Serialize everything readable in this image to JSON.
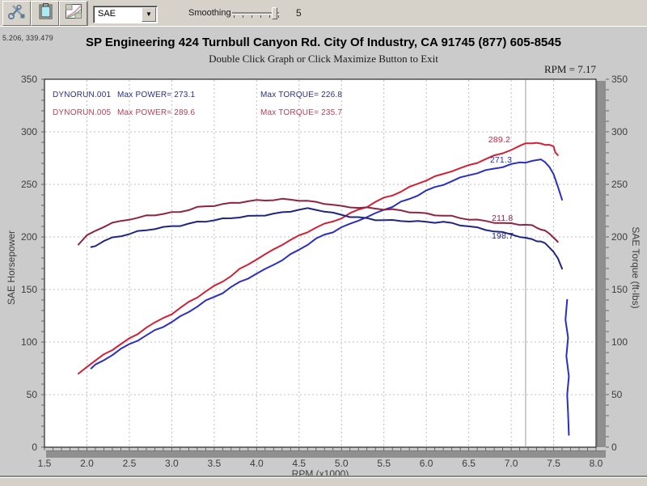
{
  "toolbar": {
    "buttons": [
      {
        "name": "tools"
      },
      {
        "name": "clipboard"
      },
      {
        "name": "graph-overlay"
      }
    ],
    "correction_dropdown": {
      "value": "SAE"
    },
    "smoothing": {
      "label": "Smoothing",
      "value": "5"
    }
  },
  "readouts": {
    "cursor_coords": "5.206, 339.479",
    "rpm": "RPM = 7.17"
  },
  "header": {
    "title": "SP Engineering 424 Turnbull Canyon Rd. City Of Industry, CA 91745 (877) 605-8545",
    "subtitle": "Double Click Graph or Click Maximize Button to Exit"
  },
  "legend": {
    "rows": [
      {
        "run": "DYNORUN.001",
        "power": "Max POWER= 273.1",
        "torque": "Max TORQUE= 226.8",
        "color": "#293089"
      },
      {
        "run": "DYNORUN.005",
        "power": "Max POWER= 289.6",
        "torque": "Max TORQUE= 235.7",
        "color": "#b34157"
      }
    ]
  },
  "chart_data": {
    "type": "line",
    "title": "SP Engineering 424 Turnbull Canyon Rd. City Of Industry, CA 91745 (877) 605-8545",
    "xlabel": "RPM (x1000)",
    "ylabel_left": "SAE Horsepower",
    "ylabel_right": "SAE Torque (ft-lbs)",
    "x_range": [
      1.5,
      8.0
    ],
    "y_range": [
      0,
      350
    ],
    "x_major": 0.5,
    "y_major": 50,
    "x_minor": 0.1,
    "y_minor": 10,
    "grid": true,
    "cursor_rpm": 7.17,
    "cursor_color": "#9c9c9c",
    "grid_color": "#bcbcbc",
    "series": [
      {
        "name": "dynorun-005-power",
        "unit": "hp",
        "color": "#cf2236",
        "max": 289.6,
        "points": [
          [
            1.9,
            70
          ],
          [
            2.0,
            77
          ],
          [
            2.1,
            82
          ],
          [
            2.2,
            88
          ],
          [
            2.3,
            93
          ],
          [
            2.4,
            98
          ],
          [
            2.5,
            103
          ],
          [
            2.6,
            108
          ],
          [
            2.7,
            114
          ],
          [
            2.8,
            118
          ],
          [
            2.9,
            123
          ],
          [
            3.0,
            127
          ],
          [
            3.1,
            132
          ],
          [
            3.2,
            138
          ],
          [
            3.3,
            143
          ],
          [
            3.4,
            148
          ],
          [
            3.5,
            153
          ],
          [
            3.6,
            158
          ],
          [
            3.7,
            163
          ],
          [
            3.8,
            169
          ],
          [
            3.9,
            174
          ],
          [
            4.0,
            179
          ],
          [
            4.1,
            183
          ],
          [
            4.2,
            188
          ],
          [
            4.3,
            193
          ],
          [
            4.4,
            197
          ],
          [
            4.5,
            201
          ],
          [
            4.6,
            205
          ],
          [
            4.7,
            209
          ],
          [
            4.8,
            212
          ],
          [
            4.9,
            215
          ],
          [
            5.0,
            218
          ],
          [
            5.1,
            222
          ],
          [
            5.2,
            226
          ],
          [
            5.3,
            229
          ],
          [
            5.4,
            233
          ],
          [
            5.5,
            237
          ],
          [
            5.6,
            240
          ],
          [
            5.7,
            243
          ],
          [
            5.8,
            247
          ],
          [
            5.9,
            251
          ],
          [
            6.0,
            254
          ],
          [
            6.1,
            257
          ],
          [
            6.2,
            260
          ],
          [
            6.3,
            263
          ],
          [
            6.4,
            265
          ],
          [
            6.5,
            268
          ],
          [
            6.6,
            271
          ],
          [
            6.7,
            274
          ],
          [
            6.8,
            277
          ],
          [
            6.9,
            280
          ],
          [
            7.0,
            283
          ],
          [
            7.1,
            286
          ],
          [
            7.17,
            289.2
          ],
          [
            7.25,
            289.6
          ],
          [
            7.3,
            289
          ],
          [
            7.35,
            288.6
          ],
          [
            7.4,
            288.2
          ],
          [
            7.45,
            287.5
          ],
          [
            7.5,
            285.5
          ],
          [
            7.52,
            281
          ],
          [
            7.55,
            278
          ]
        ]
      },
      {
        "name": "dynorun-001-power",
        "unit": "hp",
        "color": "#2a2fc2",
        "max": 273.1,
        "points": [
          [
            2.05,
            75
          ],
          [
            2.1,
            78
          ],
          [
            2.2,
            83
          ],
          [
            2.3,
            88
          ],
          [
            2.4,
            93
          ],
          [
            2.5,
            98
          ],
          [
            2.6,
            102
          ],
          [
            2.7,
            106
          ],
          [
            2.8,
            111
          ],
          [
            2.9,
            115
          ],
          [
            3.0,
            119
          ],
          [
            3.1,
            124
          ],
          [
            3.2,
            129
          ],
          [
            3.3,
            134
          ],
          [
            3.4,
            139
          ],
          [
            3.5,
            143
          ],
          [
            3.6,
            147
          ],
          [
            3.7,
            152
          ],
          [
            3.8,
            157
          ],
          [
            3.9,
            161
          ],
          [
            4.0,
            165
          ],
          [
            4.1,
            169
          ],
          [
            4.2,
            174
          ],
          [
            4.3,
            178
          ],
          [
            4.4,
            183
          ],
          [
            4.5,
            188
          ],
          [
            4.6,
            193
          ],
          [
            4.7,
            198
          ],
          [
            4.8,
            202
          ],
          [
            4.9,
            205
          ],
          [
            5.0,
            209
          ],
          [
            5.1,
            212
          ],
          [
            5.2,
            216
          ],
          [
            5.3,
            219
          ],
          [
            5.4,
            222
          ],
          [
            5.5,
            226
          ],
          [
            5.6,
            229
          ],
          [
            5.7,
            233
          ],
          [
            5.8,
            236
          ],
          [
            5.9,
            240
          ],
          [
            6.0,
            244
          ],
          [
            6.1,
            247
          ],
          [
            6.2,
            250
          ],
          [
            6.3,
            253
          ],
          [
            6.4,
            256
          ],
          [
            6.5,
            259
          ],
          [
            6.6,
            261
          ],
          [
            6.7,
            263
          ],
          [
            6.8,
            265
          ],
          [
            6.9,
            267
          ],
          [
            7.0,
            269
          ],
          [
            7.1,
            270.5
          ],
          [
            7.17,
            271.3
          ],
          [
            7.25,
            272.4
          ],
          [
            7.35,
            273.1
          ],
          [
            7.4,
            271.5
          ],
          [
            7.45,
            267
          ],
          [
            7.5,
            259
          ],
          [
            7.55,
            248
          ],
          [
            7.6,
            236
          ]
        ]
      },
      {
        "name": "dynorun-001-power-tail",
        "unit": "hp",
        "color": "#2a2fc2",
        "points": [
          [
            7.66,
            140
          ],
          [
            7.64,
            122
          ],
          [
            7.67,
            104
          ],
          [
            7.65,
            86
          ],
          [
            7.68,
            68
          ],
          [
            7.66,
            50
          ],
          [
            7.67,
            32
          ],
          [
            7.68,
            12
          ]
        ]
      },
      {
        "name": "dynorun-005-torque",
        "unit": "ft-lbs",
        "color": "#8f2440",
        "max": 235.7,
        "points": [
          [
            1.9,
            193
          ],
          [
            2.0,
            201
          ],
          [
            2.1,
            206
          ],
          [
            2.2,
            210
          ],
          [
            2.3,
            213
          ],
          [
            2.4,
            215
          ],
          [
            2.5,
            217
          ],
          [
            2.6,
            218
          ],
          [
            2.7,
            220
          ],
          [
            2.8,
            221
          ],
          [
            2.9,
            222
          ],
          [
            3.0,
            223
          ],
          [
            3.1,
            224
          ],
          [
            3.2,
            226
          ],
          [
            3.3,
            228
          ],
          [
            3.4,
            229
          ],
          [
            3.5,
            230
          ],
          [
            3.6,
            231
          ],
          [
            3.7,
            232
          ],
          [
            3.8,
            233
          ],
          [
            3.9,
            234
          ],
          [
            4.0,
            234.5
          ],
          [
            4.1,
            235
          ],
          [
            4.2,
            235.4
          ],
          [
            4.3,
            235.7
          ],
          [
            4.4,
            235.4
          ],
          [
            4.5,
            235
          ],
          [
            4.6,
            234
          ],
          [
            4.7,
            233
          ],
          [
            4.8,
            232
          ],
          [
            4.9,
            230.5
          ],
          [
            5.0,
            229
          ],
          [
            5.1,
            228.5
          ],
          [
            5.2,
            228
          ],
          [
            5.3,
            227.5
          ],
          [
            5.4,
            227
          ],
          [
            5.5,
            226.5
          ],
          [
            5.6,
            226
          ],
          [
            5.7,
            225
          ],
          [
            5.8,
            224
          ],
          [
            5.9,
            223
          ],
          [
            6.0,
            222
          ],
          [
            6.1,
            221
          ],
          [
            6.2,
            220.5
          ],
          [
            6.3,
            219.5
          ],
          [
            6.4,
            218
          ],
          [
            6.5,
            217
          ],
          [
            6.6,
            216
          ],
          [
            6.7,
            215
          ],
          [
            6.8,
            214
          ],
          [
            6.9,
            213
          ],
          [
            7.0,
            212.5
          ],
          [
            7.1,
            212
          ],
          [
            7.17,
            211.8
          ],
          [
            7.25,
            210.5
          ],
          [
            7.3,
            209
          ],
          [
            7.35,
            207.5
          ],
          [
            7.4,
            205.5
          ],
          [
            7.45,
            203
          ],
          [
            7.5,
            200
          ],
          [
            7.55,
            195
          ]
        ]
      },
      {
        "name": "dynorun-001-torque",
        "unit": "ft-lbs",
        "color": "#1f2582",
        "max": 226.8,
        "points": [
          [
            2.05,
            190
          ],
          [
            2.1,
            192
          ],
          [
            2.2,
            196
          ],
          [
            2.3,
            199
          ],
          [
            2.4,
            201
          ],
          [
            2.5,
            203
          ],
          [
            2.6,
            205
          ],
          [
            2.7,
            206.5
          ],
          [
            2.8,
            208
          ],
          [
            2.9,
            209
          ],
          [
            3.0,
            210
          ],
          [
            3.1,
            211
          ],
          [
            3.2,
            212.5
          ],
          [
            3.3,
            214
          ],
          [
            3.4,
            215
          ],
          [
            3.5,
            216
          ],
          [
            3.6,
            217
          ],
          [
            3.7,
            218
          ],
          [
            3.8,
            219
          ],
          [
            3.9,
            219.5
          ],
          [
            4.0,
            220
          ],
          [
            4.1,
            221
          ],
          [
            4.2,
            222
          ],
          [
            4.3,
            223
          ],
          [
            4.4,
            224.5
          ],
          [
            4.5,
            226
          ],
          [
            4.6,
            226.8
          ],
          [
            4.7,
            226
          ],
          [
            4.8,
            224.5
          ],
          [
            4.9,
            222.5
          ],
          [
            5.0,
            221
          ],
          [
            5.1,
            219.5
          ],
          [
            5.2,
            218.5
          ],
          [
            5.3,
            217.5
          ],
          [
            5.4,
            216.5
          ],
          [
            5.5,
            216
          ],
          [
            5.6,
            215.5
          ],
          [
            5.7,
            215.5
          ],
          [
            5.8,
            215
          ],
          [
            5.9,
            214.5
          ],
          [
            6.0,
            214.5
          ],
          [
            6.1,
            214
          ],
          [
            6.2,
            214
          ],
          [
            6.3,
            213
          ],
          [
            6.4,
            211.5
          ],
          [
            6.5,
            210
          ],
          [
            6.6,
            208.5
          ],
          [
            6.7,
            207
          ],
          [
            6.8,
            205.5
          ],
          [
            6.9,
            204
          ],
          [
            7.0,
            202.5
          ],
          [
            7.1,
            200.5
          ],
          [
            7.17,
            198.7
          ],
          [
            7.25,
            197.5
          ],
          [
            7.3,
            196.5
          ],
          [
            7.35,
            195.5
          ],
          [
            7.4,
            193.5
          ],
          [
            7.45,
            190.5
          ],
          [
            7.5,
            186
          ],
          [
            7.55,
            179
          ],
          [
            7.6,
            170
          ]
        ]
      }
    ],
    "annotations": [
      {
        "text": "289.2",
        "rpm": 6.73,
        "value": 297.0,
        "color": "#cf2236"
      },
      {
        "text": "271.3",
        "rpm": 6.75,
        "value": 277.7,
        "color": "#2a2fc2"
      },
      {
        "text": "211.8",
        "rpm": 6.77,
        "value": 222.3,
        "color": "#8f2440"
      },
      {
        "text": "198.7",
        "rpm": 6.77,
        "value": 205.4,
        "color": "#1f2582"
      }
    ]
  }
}
